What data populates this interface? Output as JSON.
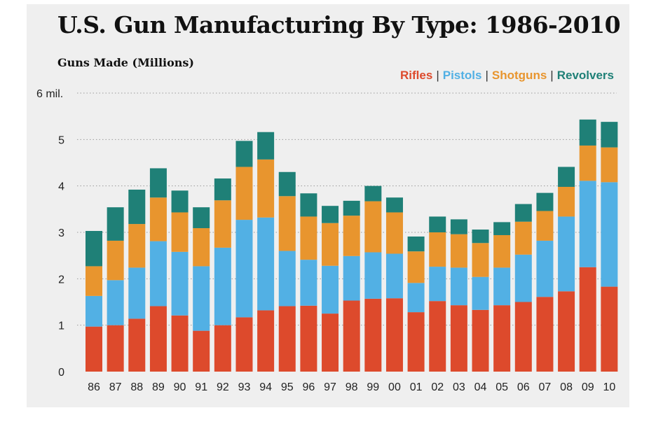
{
  "title": "U.S. Gun Manufacturing By Type: 1986-2010",
  "subtitle": "Guns Made (Millions)",
  "colors": {
    "rifles": "#dd4a2c",
    "pistols": "#52b0e4",
    "shotguns": "#e8952e",
    "revolvers": "#1f8077"
  },
  "chart_data": {
    "type": "bar",
    "stacked": true,
    "title": "U.S. Gun Manufacturing By Type: 1986-2010",
    "ylabel": "Guns Made (Millions)",
    "xlabel": "",
    "ylim": [
      0,
      6
    ],
    "yticks": [
      "0",
      "1",
      "2",
      "3",
      "4",
      "5",
      "6 mil."
    ],
    "grid": true,
    "legend_position": "top-right",
    "categories": [
      "86",
      "87",
      "88",
      "89",
      "90",
      "91",
      "92",
      "93",
      "94",
      "95",
      "96",
      "97",
      "98",
      "99",
      "00",
      "01",
      "02",
      "03",
      "04",
      "05",
      "06",
      "07",
      "08",
      "09",
      "10"
    ],
    "series": [
      {
        "name": "Rifles",
        "color": "#dd4a2c",
        "values": [
          0.97,
          1.0,
          1.14,
          1.41,
          1.21,
          0.88,
          1.0,
          1.17,
          1.32,
          1.41,
          1.42,
          1.25,
          1.53,
          1.57,
          1.58,
          1.28,
          1.52,
          1.43,
          1.33,
          1.43,
          1.5,
          1.61,
          1.73,
          2.25,
          1.83
        ]
      },
      {
        "name": "Pistols",
        "color": "#52b0e4",
        "values": [
          0.66,
          0.97,
          1.1,
          1.4,
          1.37,
          1.39,
          1.67,
          2.1,
          2.0,
          1.19,
          0.99,
          1.03,
          0.96,
          1.0,
          0.96,
          0.63,
          0.74,
          0.81,
          0.71,
          0.81,
          1.02,
          1.21,
          1.61,
          1.86,
          2.25
        ]
      },
      {
        "name": "Shotguns",
        "color": "#e8952e",
        "values": [
          0.64,
          0.85,
          0.94,
          0.94,
          0.85,
          0.82,
          1.02,
          1.14,
          1.25,
          1.18,
          0.93,
          0.92,
          0.87,
          1.1,
          0.89,
          0.68,
          0.74,
          0.72,
          0.73,
          0.7,
          0.71,
          0.64,
          0.64,
          0.76,
          0.75
        ]
      },
      {
        "name": "Revolvers",
        "color": "#1f8077",
        "values": [
          0.76,
          0.72,
          0.74,
          0.63,
          0.47,
          0.45,
          0.47,
          0.56,
          0.59,
          0.52,
          0.5,
          0.37,
          0.32,
          0.33,
          0.32,
          0.32,
          0.34,
          0.32,
          0.29,
          0.28,
          0.38,
          0.39,
          0.43,
          0.56,
          0.55
        ]
      }
    ]
  }
}
